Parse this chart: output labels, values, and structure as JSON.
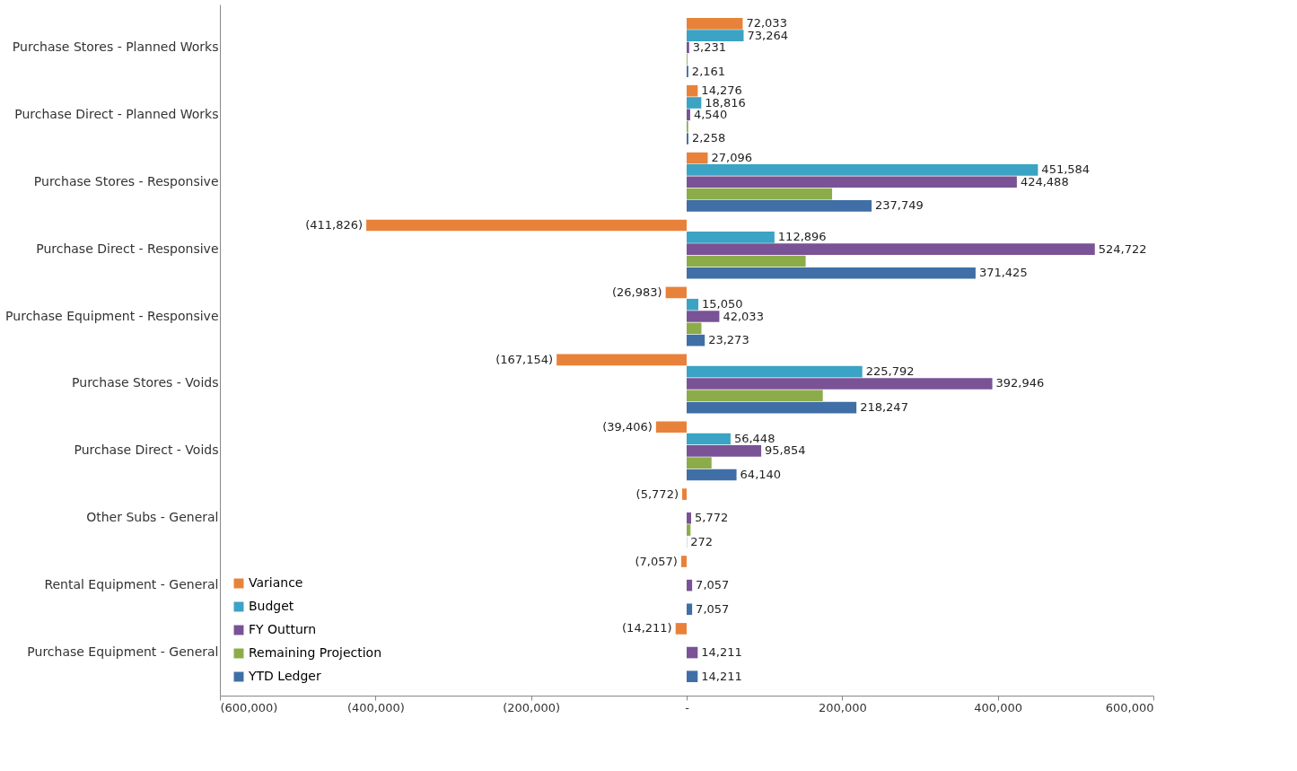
{
  "chart_data": {
    "type": "bar",
    "orientation": "horizontal",
    "categories": [
      "Purchase Stores - Planned Works",
      "Purchase Direct - Planned Works",
      "Purchase Stores - Responsive",
      "Purchase Direct - Responsive",
      "Purchase Equipment - Responsive",
      "Purchase Stores - Voids",
      "Purchase Direct - Voids",
      "Other Subs - General",
      "Rental Equipment - General",
      "Purchase Equipment - General"
    ],
    "series": [
      {
        "name": "Variance",
        "color": "#e8823a",
        "values": [
          72033,
          14276,
          27096,
          -411826,
          -26983,
          -167154,
          -39406,
          -5772,
          -7057,
          -14211
        ],
        "value_labels": [
          "72,033",
          "14,276",
          "27,096",
          "(411,826)",
          "(26,983)",
          "(167,154)",
          "(39,406)",
          "(5,772)",
          "(7,057)",
          "(14,211)"
        ]
      },
      {
        "name": "Budget",
        "color": "#3ba3c3",
        "values": [
          73264,
          18816,
          451584,
          112896,
          15050,
          225792,
          56448,
          0,
          0,
          0
        ],
        "value_labels": [
          "73,264",
          "18,816",
          "451,584",
          "112,896",
          "15,050",
          "225,792",
          "56,448",
          null,
          null,
          null
        ]
      },
      {
        "name": "FY Outturn",
        "color": "#7a5296",
        "values": [
          3231,
          4540,
          424488,
          524722,
          42033,
          392946,
          95854,
          5772,
          7057,
          14211
        ],
        "value_labels": [
          "3,231",
          "4,540",
          "424,488",
          "524,722",
          "42,033",
          "392,946",
          "95,854",
          "5,772",
          "7,057",
          "14,211"
        ]
      },
      {
        "name": "Remaining Projection",
        "color": "#8cac4a",
        "values": [
          1000,
          2000,
          187000,
          153000,
          19000,
          175000,
          32000,
          5000,
          0,
          0
        ]
      },
      {
        "name": "YTD Ledger",
        "color": "#3f6fa6",
        "values": [
          2161,
          2258,
          237749,
          371425,
          23273,
          218247,
          64140,
          272,
          7057,
          14211
        ],
        "value_labels": [
          "2,161",
          "2,258",
          "237,749",
          "371,425",
          "23,273",
          "218,247",
          "64,140",
          "272",
          "7,057",
          "14,211"
        ]
      }
    ],
    "xlim": [
      -600000,
      600000
    ],
    "xticks": [
      {
        "value": -600000,
        "label": "(600,000)"
      },
      {
        "value": -400000,
        "label": "(400,000)"
      },
      {
        "value": -200000,
        "label": "(200,000)"
      },
      {
        "value": 0,
        "label": "-"
      },
      {
        "value": 200000,
        "label": "200,000"
      },
      {
        "value": 400000,
        "label": "400,000"
      },
      {
        "value": 600000,
        "label": "600,000"
      }
    ],
    "legend": "bottom left",
    "grid": false
  }
}
